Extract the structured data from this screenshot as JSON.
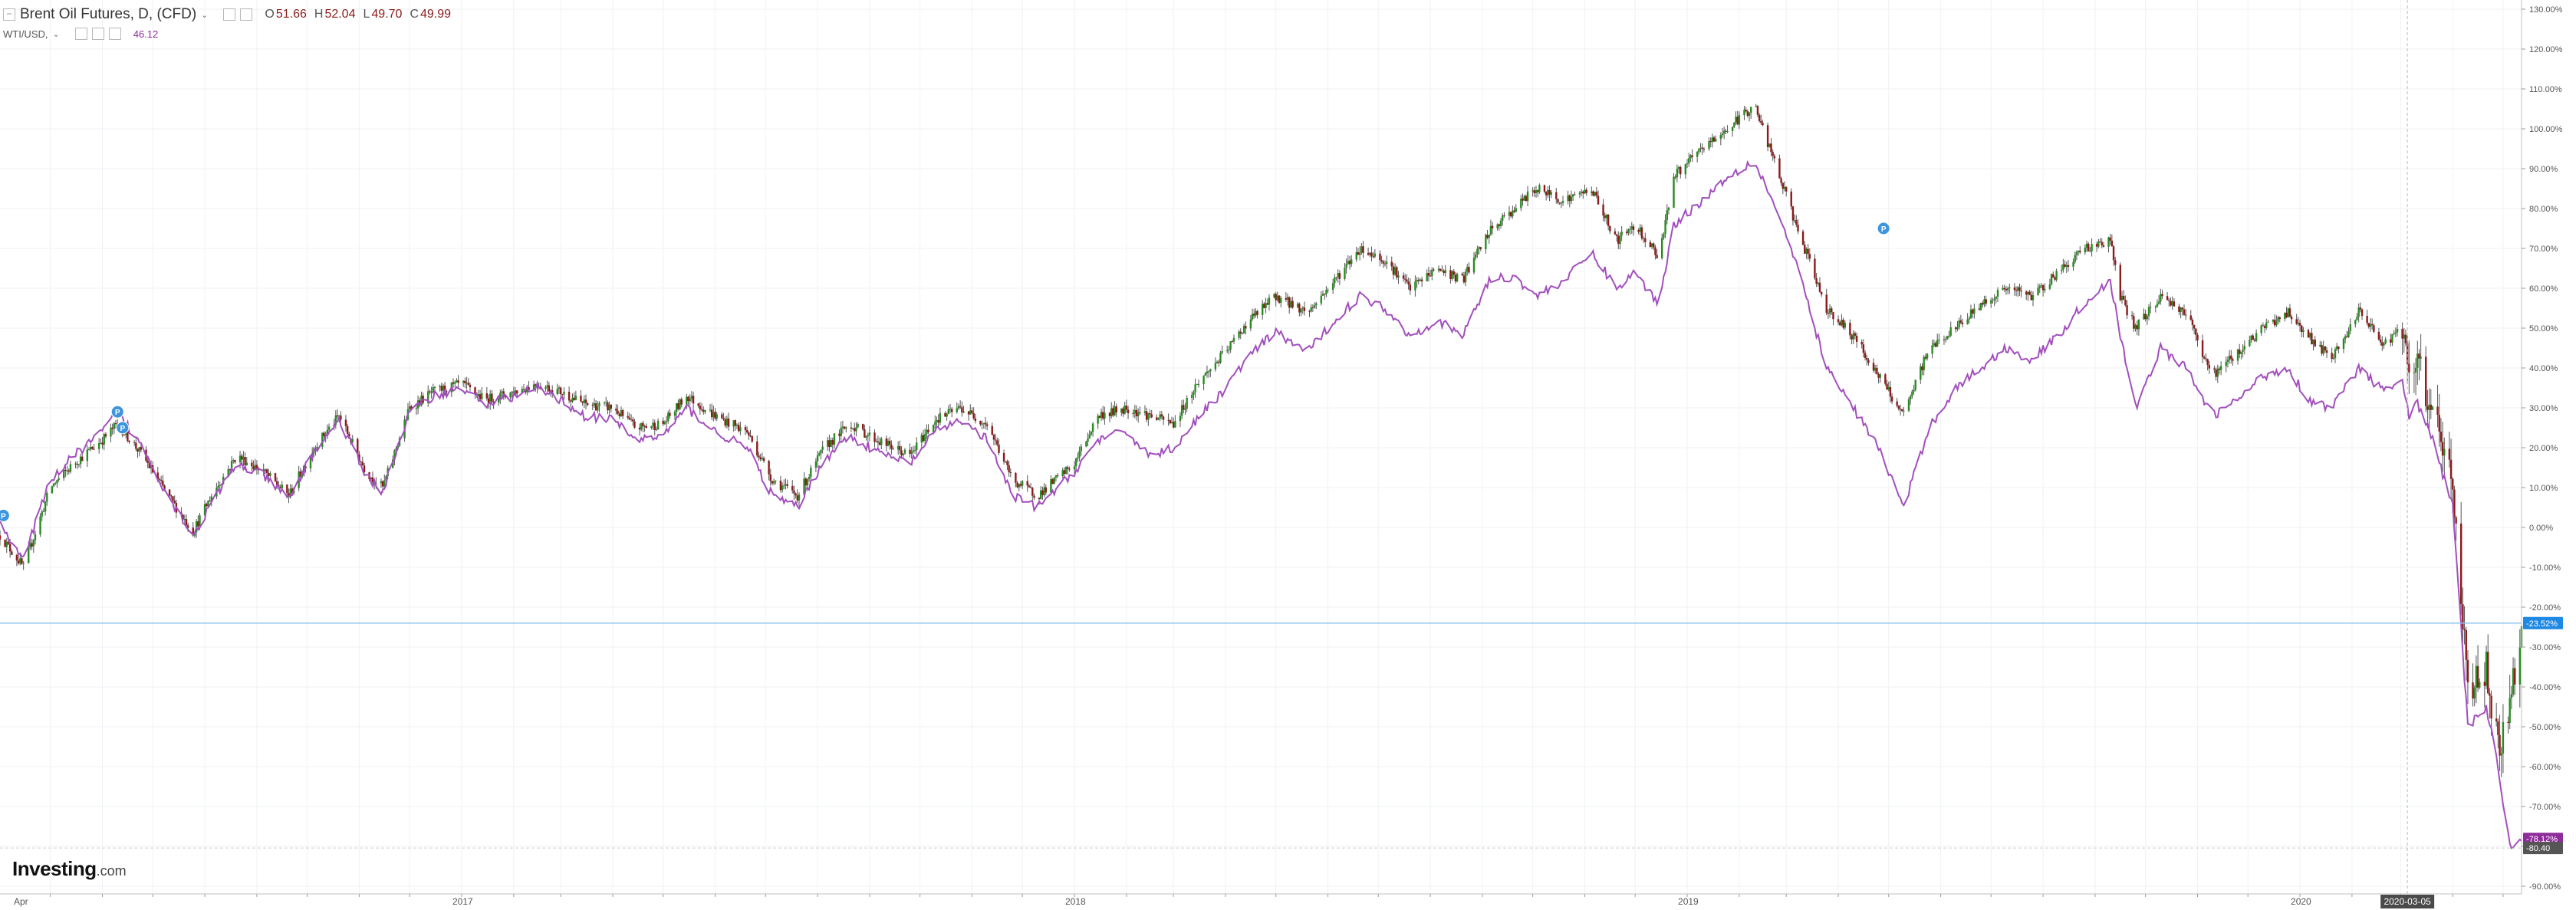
{
  "header": {
    "title": "Brent Oil Futures, D, (CFD)",
    "o_label": "O",
    "o_value": "51.66",
    "h_label": "H",
    "h_value": "52.04",
    "l_label": "L",
    "l_value": "49.70",
    "c_label": "C",
    "c_value": "49.99",
    "compare_title": "WTI/USD,",
    "compare_value": "46.12",
    "caret": "⌄"
  },
  "logo": {
    "brand": "Investing",
    "domain": ".com"
  },
  "colors": {
    "up": "#2a8a22",
    "down": "#8b1a1a",
    "wick": "#555555",
    "wti_line": "#a24fbd",
    "crosshair": "#90c4ee",
    "badge_brent": "#1e88e5",
    "badge_wti": "#8e2c9b",
    "badge_low": "#555555",
    "event_marker": "#3d95e0"
  },
  "chart_data": {
    "type": "line",
    "x_axis": {
      "tick_labels": [
        "Apr",
        "2017",
        "2018",
        "2019",
        "2020"
      ],
      "start": "2016-04-01",
      "end": "2020-05-12",
      "highlight_label": "2020-03-05"
    },
    "y_axis": {
      "unit": "%",
      "min": -90,
      "max": 130,
      "step": 10,
      "tick_labels": [
        "130.00%",
        "120.00%",
        "110.00%",
        "100.00%",
        "90.00%",
        "80.00%",
        "70.00%",
        "60.00%",
        "50.00%",
        "40.00%",
        "30.00%",
        "20.00%",
        "10.00%",
        "0.00%",
        "-10.00%",
        "-20.00%",
        "-30.00%",
        "-40.00%",
        "-50.00%",
        "-60.00%",
        "-70.00%",
        "-80.00%",
        "-90.00%"
      ]
    },
    "grid": true,
    "badges": {
      "brent_last": "-23.52%",
      "wti_last": "-78.12%",
      "low_marker": "-80.40"
    },
    "event_markers": [
      {
        "date": "2016-04-03",
        "value": 3,
        "label": "P"
      },
      {
        "date": "2016-06-10",
        "value": 29,
        "label": "P"
      },
      {
        "date": "2016-06-13",
        "value": 25,
        "label": "P"
      },
      {
        "date": "2019-04-28",
        "value": 75,
        "label": "P"
      }
    ],
    "series": [
      {
        "name": "Brent Oil Futures, D, (CFD)",
        "style": "candlestick",
        "x": [
          "2016-04-01",
          "2016-04-15",
          "2016-05-01",
          "2016-05-15",
          "2016-06-01",
          "2016-06-10",
          "2016-06-25",
          "2016-07-10",
          "2016-07-25",
          "2016-08-05",
          "2016-08-20",
          "2016-09-05",
          "2016-09-20",
          "2016-10-05",
          "2016-10-20",
          "2016-11-05",
          "2016-11-15",
          "2016-12-01",
          "2016-12-15",
          "2017-01-01",
          "2017-01-15",
          "2017-02-01",
          "2017-02-15",
          "2017-03-01",
          "2017-03-15",
          "2017-04-01",
          "2017-04-15",
          "2017-05-01",
          "2017-05-15",
          "2017-06-01",
          "2017-06-20",
          "2017-07-05",
          "2017-07-20",
          "2017-08-05",
          "2017-08-20",
          "2017-09-05",
          "2017-09-25",
          "2017-10-10",
          "2017-10-25",
          "2017-11-10",
          "2017-11-25",
          "2017-12-10",
          "2018-01-01",
          "2018-01-15",
          "2018-02-01",
          "2018-02-15",
          "2018-03-01",
          "2018-03-15",
          "2018-04-01",
          "2018-04-15",
          "2018-05-01",
          "2018-05-20",
          "2018-06-05",
          "2018-06-20",
          "2018-07-05",
          "2018-07-20",
          "2018-08-05",
          "2018-08-20",
          "2018-09-05",
          "2018-09-20",
          "2018-10-03",
          "2018-10-20",
          "2018-11-05",
          "2018-11-20",
          "2018-12-01",
          "2018-12-15",
          "2018-12-24",
          "2019-01-10",
          "2019-01-25",
          "2019-02-10",
          "2019-02-25",
          "2019-03-10",
          "2019-03-25",
          "2019-04-10",
          "2019-04-25",
          "2019-05-10",
          "2019-05-25",
          "2019-06-10",
          "2019-06-25",
          "2019-07-10",
          "2019-07-25",
          "2019-08-10",
          "2019-08-25",
          "2019-09-10",
          "2019-09-16",
          "2019-09-25",
          "2019-10-10",
          "2019-10-25",
          "2019-11-10",
          "2019-11-25",
          "2019-12-10",
          "2019-12-25",
          "2020-01-06",
          "2020-01-20",
          "2020-02-05",
          "2020-02-20",
          "2020-03-01",
          "2020-03-06",
          "2020-03-10",
          "2020-03-20",
          "2020-04-01",
          "2020-04-10",
          "2020-04-21",
          "2020-04-28",
          "2020-05-05",
          "2020-05-12"
        ],
        "values": [
          -2,
          -10,
          10,
          16,
          22,
          26,
          18,
          8,
          -1,
          8,
          18,
          14,
          8,
          20,
          28,
          14,
          10,
          30,
          34,
          36,
          32,
          34,
          36,
          34,
          31,
          30,
          25,
          26,
          33,
          28,
          24,
          12,
          8,
          20,
          26,
          22,
          18,
          27,
          30,
          26,
          12,
          8,
          16,
          28,
          30,
          28,
          26,
          36,
          44,
          52,
          58,
          54,
          62,
          70,
          67,
          60,
          65,
          62,
          74,
          80,
          85,
          82,
          85,
          72,
          76,
          68,
          88,
          95,
          100,
          106,
          88,
          72,
          55,
          48,
          38,
          28,
          45,
          50,
          56,
          60,
          58,
          64,
          70,
          72,
          58,
          50,
          58,
          54,
          38,
          44,
          50,
          54,
          48,
          42,
          54,
          46,
          50,
          36,
          42,
          30,
          10,
          -40,
          -35,
          -55,
          -45,
          -24
        ]
      },
      {
        "name": "WTI/USD",
        "style": "line",
        "x": [
          "2016-04-01",
          "2016-04-15",
          "2016-05-01",
          "2016-05-15",
          "2016-06-01",
          "2016-06-10",
          "2016-06-25",
          "2016-07-10",
          "2016-07-25",
          "2016-08-05",
          "2016-08-20",
          "2016-09-05",
          "2016-09-20",
          "2016-10-05",
          "2016-10-20",
          "2016-11-05",
          "2016-11-15",
          "2016-12-01",
          "2016-12-15",
          "2017-01-01",
          "2017-01-15",
          "2017-02-01",
          "2017-02-15",
          "2017-03-01",
          "2017-03-15",
          "2017-04-01",
          "2017-04-15",
          "2017-05-01",
          "2017-05-15",
          "2017-06-01",
          "2017-06-20",
          "2017-07-05",
          "2017-07-20",
          "2017-08-05",
          "2017-08-20",
          "2017-09-05",
          "2017-09-25",
          "2017-10-10",
          "2017-10-25",
          "2017-11-10",
          "2017-11-25",
          "2017-12-10",
          "2018-01-01",
          "2018-01-15",
          "2018-02-01",
          "2018-02-15",
          "2018-03-01",
          "2018-03-15",
          "2018-04-01",
          "2018-04-15",
          "2018-05-01",
          "2018-05-20",
          "2018-06-05",
          "2018-06-20",
          "2018-07-05",
          "2018-07-20",
          "2018-08-05",
          "2018-08-20",
          "2018-09-05",
          "2018-09-20",
          "2018-10-03",
          "2018-10-20",
          "2018-11-05",
          "2018-11-20",
          "2018-12-01",
          "2018-12-15",
          "2018-12-24",
          "2019-01-10",
          "2019-01-25",
          "2019-02-10",
          "2019-02-25",
          "2019-03-10",
          "2019-03-25",
          "2019-04-10",
          "2019-04-25",
          "2019-05-10",
          "2019-05-25",
          "2019-06-10",
          "2019-06-25",
          "2019-07-10",
          "2019-07-25",
          "2019-08-10",
          "2019-08-25",
          "2019-09-10",
          "2019-09-16",
          "2019-09-25",
          "2019-10-10",
          "2019-10-25",
          "2019-11-10",
          "2019-11-25",
          "2019-12-10",
          "2019-12-25",
          "2020-01-06",
          "2020-01-20",
          "2020-02-05",
          "2020-02-20",
          "2020-03-01",
          "2020-03-06",
          "2020-03-10",
          "2020-03-20",
          "2020-04-01",
          "2020-04-10",
          "2020-04-21",
          "2020-04-28",
          "2020-05-05",
          "2020-05-12"
        ],
        "values": [
          1,
          -8,
          12,
          18,
          24,
          29,
          20,
          8,
          -2,
          6,
          16,
          13,
          7,
          19,
          27,
          13,
          9,
          29,
          33,
          35,
          31,
          33,
          35,
          32,
          28,
          27,
          22,
          23,
          30,
          24,
          20,
          8,
          5,
          17,
          23,
          19,
          16,
          24,
          27,
          22,
          8,
          5,
          14,
          22,
          24,
          18,
          20,
          27,
          35,
          43,
          49,
          44,
          52,
          58,
          55,
          48,
          52,
          48,
          62,
          63,
          58,
          62,
          69,
          60,
          64,
          56,
          76,
          82,
          88,
          92,
          78,
          62,
          40,
          30,
          20,
          5,
          25,
          35,
          40,
          45,
          42,
          48,
          56,
          62,
          48,
          30,
          45,
          40,
          28,
          32,
          38,
          40,
          32,
          30,
          40,
          34,
          38,
          28,
          32,
          22,
          5,
          -50,
          -45,
          -60,
          -80,
          -78
        ]
      }
    ]
  }
}
